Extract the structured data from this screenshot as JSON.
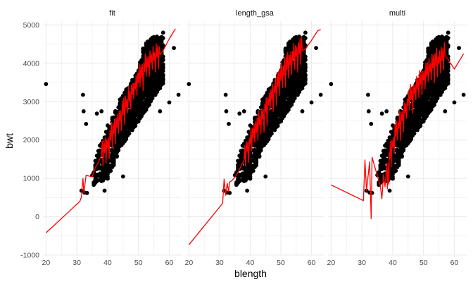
{
  "colors": {
    "points": "#000000",
    "fit_line": "#ff0000",
    "grid": "#ebebeb",
    "background": "#ffffff"
  },
  "chart_data": {
    "type": "scatter",
    "xlabel": "blength",
    "ylabel": "bwt",
    "xlim": [
      19,
      64
    ],
    "ylim": [
      -1000,
      5100
    ],
    "x_ticks": [
      20,
      30,
      40,
      50,
      60
    ],
    "y_ticks": [
      -1000,
      0,
      1000,
      2000,
      3000,
      4000,
      5000
    ],
    "grid": true,
    "facets": [
      "fit",
      "length_gsa",
      "multi"
    ],
    "points": {
      "outliers": [
        [
          20,
          3460
        ],
        [
          31.5,
          680
        ],
        [
          32,
          3180
        ],
        [
          32.2,
          2750
        ],
        [
          32.5,
          630
        ],
        [
          33,
          2420
        ],
        [
          33.3,
          620
        ],
        [
          36.5,
          2690
        ],
        [
          38,
          2750
        ],
        [
          38.5,
          1340
        ],
        [
          39,
          680
        ],
        [
          40,
          2380
        ],
        [
          45,
          1050
        ],
        [
          57,
          2750
        ],
        [
          60,
          2980
        ],
        [
          61.5,
          4400
        ],
        [
          63,
          3180
        ],
        [
          58,
          4800
        ],
        [
          35.5,
          880
        ]
      ],
      "band": {
        "x_range": [
          35,
          58
        ],
        "low": [
          [
            35,
            800
          ],
          [
            40,
            1000
          ],
          [
            45,
            1900
          ],
          [
            50,
            2500
          ],
          [
            55,
            3100
          ],
          [
            58,
            3500
          ]
        ],
        "high": [
          [
            35,
            1400
          ],
          [
            40,
            2300
          ],
          [
            45,
            3200
          ],
          [
            50,
            3800
          ],
          [
            52,
            4500
          ],
          [
            55,
            4700
          ],
          [
            58,
            4700
          ]
        ]
      }
    },
    "lines": {
      "fit": [
        [
          20,
          -420
        ],
        [
          31,
          400
        ],
        [
          31.5,
          520
        ],
        [
          32,
          1000
        ],
        [
          32.3,
          620
        ],
        [
          33,
          1080
        ],
        [
          34,
          1060
        ],
        [
          35,
          1040
        ],
        [
          36,
          1280
        ],
        [
          37,
          1420
        ],
        [
          38,
          1610
        ],
        [
          39,
          1670
        ],
        [
          40,
          1800
        ],
        [
          41,
          2000
        ],
        [
          42,
          2160
        ],
        [
          43,
          2320
        ],
        [
          44,
          2500
        ],
        [
          45,
          2660
        ],
        [
          46,
          2840
        ],
        [
          47,
          3000
        ],
        [
          48,
          3180
        ],
        [
          49,
          3340
        ],
        [
          50,
          3500
        ],
        [
          51,
          3640
        ],
        [
          52,
          3790
        ],
        [
          53,
          3900
        ],
        [
          54,
          4010
        ],
        [
          55,
          4080
        ],
        [
          56,
          4160
        ],
        [
          57,
          4230
        ],
        [
          58,
          4330
        ],
        [
          60,
          4640
        ],
        [
          62,
          4900
        ]
      ],
      "length_gsa": [
        [
          20,
          -730
        ],
        [
          31,
          350
        ],
        [
          31.5,
          980
        ],
        [
          32,
          560
        ],
        [
          32.5,
          870
        ],
        [
          33,
          650
        ],
        [
          33.2,
          900
        ],
        [
          34,
          940
        ],
        [
          35,
          1030
        ],
        [
          36,
          1150
        ],
        [
          37,
          1320
        ],
        [
          38,
          1480
        ],
        [
          39,
          1700
        ],
        [
          40,
          1900
        ],
        [
          41,
          2050
        ],
        [
          42,
          2200
        ],
        [
          43,
          2400
        ],
        [
          44,
          2560
        ],
        [
          45,
          2730
        ],
        [
          46,
          2900
        ],
        [
          47,
          3060
        ],
        [
          48,
          3230
        ],
        [
          49,
          3390
        ],
        [
          50,
          3550
        ],
        [
          51,
          3680
        ],
        [
          52,
          3830
        ],
        [
          53,
          3960
        ],
        [
          54,
          4080
        ],
        [
          55,
          4180
        ],
        [
          56,
          4250
        ],
        [
          57,
          4330
        ],
        [
          58,
          4380
        ],
        [
          60,
          4600
        ],
        [
          62,
          4850
        ],
        [
          63,
          4880
        ]
      ],
      "multi": [
        [
          20,
          830
        ],
        [
          30.5,
          420
        ],
        [
          31,
          1480
        ],
        [
          31.5,
          680
        ],
        [
          32.5,
          1430
        ],
        [
          33,
          -50
        ],
        [
          33.3,
          1550
        ],
        [
          36,
          800
        ],
        [
          36.5,
          470
        ],
        [
          37,
          1100
        ],
        [
          37.5,
          780
        ],
        [
          38,
          1300
        ],
        [
          38.5,
          880
        ],
        [
          39,
          1500
        ],
        [
          40,
          1800
        ],
        [
          41,
          2100
        ],
        [
          42,
          2300
        ],
        [
          43,
          2500
        ],
        [
          44,
          2700
        ],
        [
          45,
          2900
        ],
        [
          46,
          3050
        ],
        [
          47,
          3200
        ],
        [
          48,
          3330
        ],
        [
          49,
          3450
        ],
        [
          50,
          3560
        ],
        [
          51,
          3650
        ],
        [
          52,
          3760
        ],
        [
          53,
          3880
        ],
        [
          54,
          3950
        ],
        [
          55,
          4000
        ],
        [
          56,
          4080
        ],
        [
          57,
          4200
        ],
        [
          58,
          4100
        ],
        [
          60,
          3850
        ],
        [
          63,
          4250
        ]
      ],
      "zigzag_amplitude": 450
    }
  }
}
